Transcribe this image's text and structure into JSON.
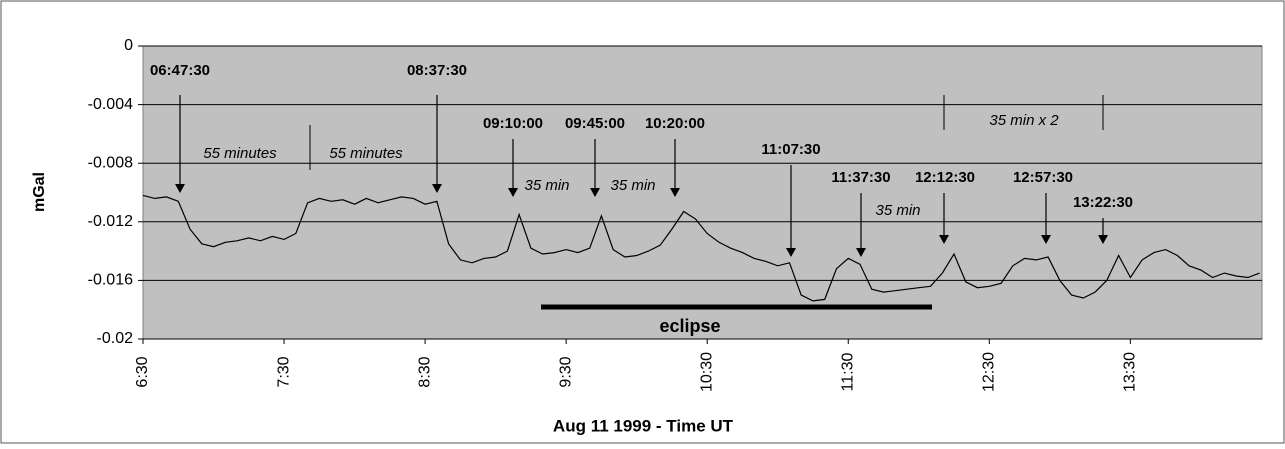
{
  "chart_data": {
    "type": "line",
    "ylabel": "mGal",
    "xlabel": "Aug 11 1999 - Time UT",
    "color": "#000000",
    "grid": true,
    "xlim": [
      390,
      866
    ],
    "xticks": [
      {
        "value": 390,
        "label": "6:30"
      },
      {
        "value": 450,
        "label": "7:30"
      },
      {
        "value": 510,
        "label": "8:30"
      },
      {
        "value": 570,
        "label": "9:30"
      },
      {
        "value": 630,
        "label": "10:30"
      },
      {
        "value": 690,
        "label": "11:30"
      },
      {
        "value": 750,
        "label": "12:30"
      },
      {
        "value": 810,
        "label": "13:30"
      }
    ],
    "ylim": [
      -0.02,
      0
    ],
    "yticks": [
      0,
      -0.004,
      -0.008,
      -0.012,
      -0.016,
      -0.02
    ],
    "x": [
      390,
      395,
      400,
      405,
      410,
      415,
      420,
      425,
      430,
      435,
      440,
      445,
      450,
      455,
      460,
      465,
      470,
      475,
      480,
      485,
      490,
      495,
      500,
      505,
      510,
      515,
      520,
      525,
      530,
      535,
      540,
      545,
      550,
      555,
      560,
      565,
      570,
      575,
      580,
      585,
      590,
      595,
      600,
      605,
      610,
      615,
      620,
      625,
      630,
      635,
      640,
      645,
      650,
      655,
      660,
      665,
      670,
      675,
      680,
      685,
      690,
      695,
      700,
      705,
      710,
      715,
      720,
      725,
      730,
      735,
      740,
      745,
      750,
      755,
      760,
      765,
      770,
      775,
      780,
      785,
      790,
      795,
      800,
      805,
      810,
      815,
      820,
      825,
      830,
      835,
      840,
      845,
      850,
      855,
      860,
      865
    ],
    "values": [
      -0.0102,
      -0.0104,
      -0.0103,
      -0.0106,
      -0.0125,
      -0.0135,
      -0.0137,
      -0.0134,
      -0.0133,
      -0.0131,
      -0.0133,
      -0.013,
      -0.0132,
      -0.0128,
      -0.0107,
      -0.0104,
      -0.0106,
      -0.0105,
      -0.0108,
      -0.0104,
      -0.0107,
      -0.0105,
      -0.0103,
      -0.0104,
      -0.0108,
      -0.0106,
      -0.0135,
      -0.0146,
      -0.0148,
      -0.0145,
      -0.0144,
      -0.014,
      -0.0115,
      -0.0138,
      -0.0142,
      -0.0141,
      -0.0139,
      -0.0141,
      -0.0138,
      -0.0116,
      -0.0139,
      -0.0144,
      -0.0143,
      -0.014,
      -0.0136,
      -0.0125,
      -0.0113,
      -0.0118,
      -0.0128,
      -0.0134,
      -0.0138,
      -0.0141,
      -0.0145,
      -0.0147,
      -0.015,
      -0.0148,
      -0.017,
      -0.0174,
      -0.0173,
      -0.0152,
      -0.0145,
      -0.0149,
      -0.0166,
      -0.0168,
      -0.0167,
      -0.0166,
      -0.0165,
      -0.0164,
      -0.0155,
      -0.0142,
      -0.0161,
      -0.0165,
      -0.0164,
      -0.0162,
      -0.015,
      -0.0145,
      -0.0146,
      -0.0144,
      -0.016,
      -0.017,
      -0.0172,
      -0.0168,
      -0.016,
      -0.0143,
      -0.0158,
      -0.0146,
      -0.0141,
      -0.0139,
      -0.0143,
      -0.015,
      -0.0153,
      -0.0158,
      -0.0155,
      -0.0157,
      -0.0158,
      -0.0155
    ],
    "annotations": [
      "06:47:30",
      "08:37:30",
      "09:10:00",
      "09:45:00",
      "10:20:00",
      "11:07:30",
      "11:37:30",
      "12:12:30",
      "12:57:30",
      "13:22:30"
    ],
    "notes": [
      "55 minutes",
      "55 minutes",
      "35 min",
      "35 min",
      "35 min",
      "35 min x 2"
    ],
    "eclipse": "eclipse"
  }
}
